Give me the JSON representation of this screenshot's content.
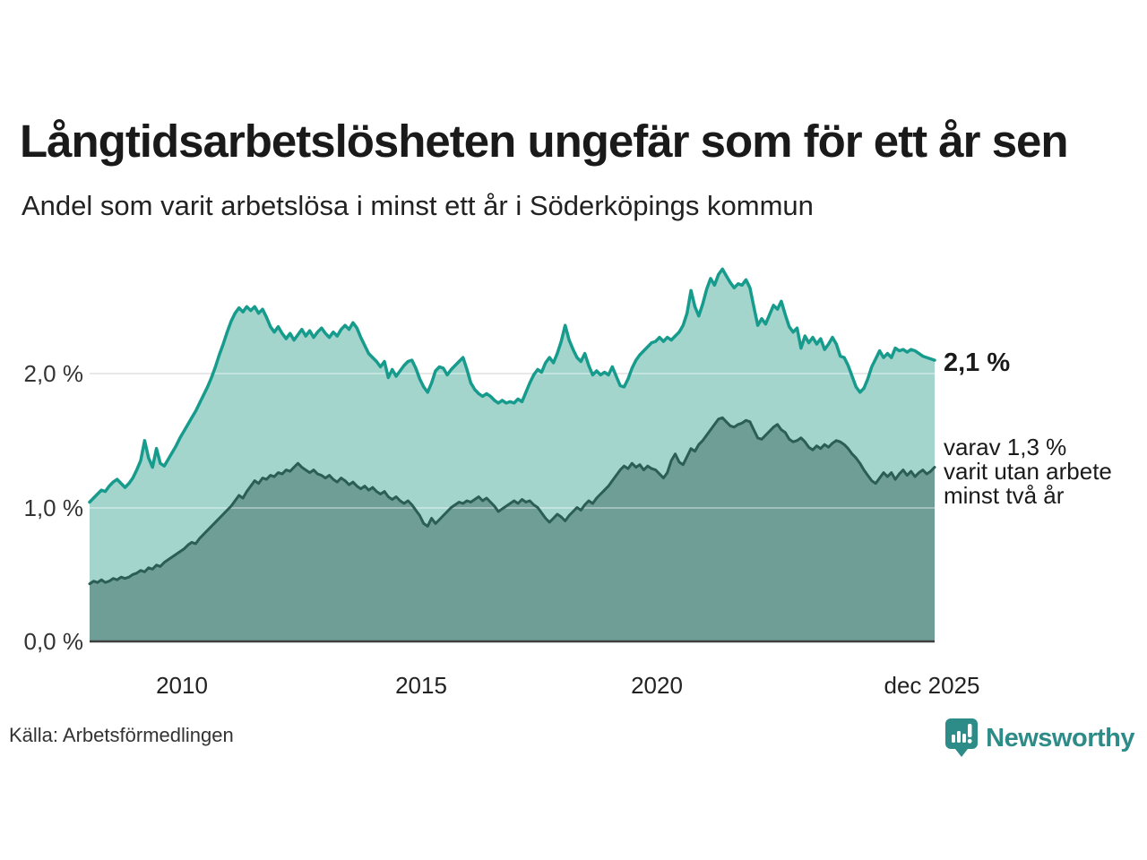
{
  "title": "Långtidsarbetslösheten ungefär som för ett år sen",
  "subtitle": "Andel som varit arbetslösa i minst ett år i Söderköpings kommun",
  "source": "Källa: Arbetsförmedlingen",
  "branding": {
    "name": "Newsworthy"
  },
  "annotations": {
    "latest_total": "2,1 %",
    "secondary_line1": "varav 1,3 %",
    "secondary_line2": "varit utan arbete",
    "secondary_line3": "minst två år"
  },
  "colors": {
    "accent_teal_line": "#169b8d",
    "light_fill": "#a3d5cd",
    "dark_fill": "#6f9e97",
    "dark_line": "#2b5e55",
    "grid": "#dcdcdc",
    "grid_overlay": "rgba(255,255,255,0.35)",
    "axis_baseline": "#3f3f3f",
    "logo_teal": "#2e8c88"
  },
  "chart_data": {
    "type": "area",
    "title": "Långtidsarbetslösheten ungefär som för ett år sen",
    "subtitle": "Andel som varit arbetslösa i minst ett år i Söderköpings kommun",
    "x_start": "2008-01",
    "x_end": "2025-12",
    "x_axis_ticks": [
      "2010",
      "2015",
      "2020",
      "dec 2025"
    ],
    "y_axis_ticks": [
      "2,0 %",
      "1,0 %",
      "0,0 %"
    ],
    "y_gridlines_pct": [
      2.0,
      1.0
    ],
    "ylim": [
      0,
      3
    ],
    "unit": "% av befolkningen",
    "legend_position": "annotated-right",
    "grid": true,
    "series": [
      {
        "name": "Andel som varit arbetslösa minst ett år",
        "latest_value": 2.1,
        "color": "#169b8d",
        "fill": "#a3d5cd",
        "values": [
          1.04,
          1.07,
          1.1,
          1.13,
          1.12,
          1.16,
          1.19,
          1.21,
          1.18,
          1.15,
          1.18,
          1.22,
          1.28,
          1.35,
          1.5,
          1.37,
          1.3,
          1.44,
          1.33,
          1.31,
          1.36,
          1.41,
          1.46,
          1.52,
          1.57,
          1.62,
          1.67,
          1.72,
          1.78,
          1.84,
          1.9,
          1.97,
          2.05,
          2.14,
          2.22,
          2.31,
          2.39,
          2.45,
          2.49,
          2.46,
          2.5,
          2.47,
          2.5,
          2.45,
          2.48,
          2.42,
          2.35,
          2.31,
          2.35,
          2.3,
          2.26,
          2.3,
          2.25,
          2.29,
          2.33,
          2.28,
          2.32,
          2.27,
          2.31,
          2.34,
          2.3,
          2.27,
          2.31,
          2.28,
          2.33,
          2.36,
          2.33,
          2.38,
          2.34,
          2.27,
          2.21,
          2.15,
          2.12,
          2.09,
          2.05,
          2.09,
          1.97,
          2.03,
          1.98,
          2.02,
          2.06,
          2.09,
          2.1,
          2.04,
          1.96,
          1.9,
          1.86,
          1.93,
          2.02,
          2.05,
          2.04,
          1.99,
          2.03,
          2.06,
          2.09,
          2.12,
          2.03,
          1.93,
          1.88,
          1.85,
          1.83,
          1.85,
          1.83,
          1.8,
          1.78,
          1.8,
          1.78,
          1.79,
          1.78,
          1.81,
          1.79,
          1.86,
          1.93,
          1.99,
          2.03,
          2.01,
          2.08,
          2.12,
          2.08,
          2.15,
          2.24,
          2.36,
          2.25,
          2.18,
          2.12,
          2.09,
          2.15,
          2.06,
          1.99,
          2.02,
          1.99,
          2.01,
          1.99,
          2.05,
          1.98,
          1.91,
          1.9,
          1.96,
          2.04,
          2.1,
          2.14,
          2.17,
          2.2,
          2.23,
          2.24,
          2.27,
          2.24,
          2.27,
          2.25,
          2.28,
          2.31,
          2.36,
          2.45,
          2.62,
          2.5,
          2.43,
          2.52,
          2.63,
          2.71,
          2.66,
          2.74,
          2.78,
          2.73,
          2.68,
          2.64,
          2.67,
          2.66,
          2.7,
          2.64,
          2.5,
          2.36,
          2.41,
          2.37,
          2.44,
          2.51,
          2.48,
          2.54,
          2.44,
          2.35,
          2.31,
          2.34,
          2.19,
          2.28,
          2.23,
          2.27,
          2.22,
          2.26,
          2.18,
          2.22,
          2.27,
          2.22,
          2.13,
          2.12,
          2.06,
          1.98,
          1.9,
          1.86,
          1.89,
          1.96,
          2.05,
          2.11,
          2.17,
          2.12,
          2.15,
          2.12,
          2.19,
          2.17,
          2.18,
          2.16,
          2.18,
          2.17,
          2.15,
          2.13,
          2.12,
          2.11,
          2.1
        ]
      },
      {
        "name": "varav utan arbete minst två år",
        "latest_value": 1.3,
        "color": "#2b5e55",
        "fill": "#6f9e97",
        "values": [
          0.43,
          0.45,
          0.44,
          0.46,
          0.44,
          0.45,
          0.47,
          0.46,
          0.48,
          0.47,
          0.48,
          0.5,
          0.51,
          0.53,
          0.52,
          0.55,
          0.54,
          0.57,
          0.56,
          0.59,
          0.61,
          0.63,
          0.65,
          0.67,
          0.69,
          0.72,
          0.74,
          0.73,
          0.77,
          0.8,
          0.83,
          0.86,
          0.89,
          0.92,
          0.95,
          0.98,
          1.01,
          1.05,
          1.09,
          1.07,
          1.12,
          1.16,
          1.2,
          1.18,
          1.22,
          1.21,
          1.24,
          1.23,
          1.26,
          1.25,
          1.28,
          1.27,
          1.3,
          1.33,
          1.3,
          1.28,
          1.26,
          1.28,
          1.25,
          1.24,
          1.22,
          1.24,
          1.21,
          1.19,
          1.22,
          1.2,
          1.17,
          1.19,
          1.16,
          1.14,
          1.16,
          1.13,
          1.15,
          1.12,
          1.1,
          1.12,
          1.08,
          1.06,
          1.08,
          1.05,
          1.03,
          1.05,
          1.02,
          0.98,
          0.94,
          0.88,
          0.86,
          0.92,
          0.88,
          0.91,
          0.94,
          0.97,
          1.0,
          1.02,
          1.04,
          1.03,
          1.05,
          1.04,
          1.06,
          1.08,
          1.05,
          1.07,
          1.04,
          1.01,
          0.97,
          0.99,
          1.01,
          1.03,
          1.05,
          1.03,
          1.06,
          1.04,
          1.05,
          1.02,
          1.0,
          0.96,
          0.92,
          0.89,
          0.92,
          0.95,
          0.93,
          0.9,
          0.94,
          0.97,
          1.0,
          0.98,
          1.02,
          1.05,
          1.03,
          1.07,
          1.1,
          1.13,
          1.16,
          1.2,
          1.24,
          1.28,
          1.31,
          1.29,
          1.33,
          1.3,
          1.32,
          1.28,
          1.31,
          1.29,
          1.28,
          1.25,
          1.22,
          1.26,
          1.35,
          1.4,
          1.34,
          1.32,
          1.38,
          1.44,
          1.42,
          1.47,
          1.5,
          1.54,
          1.58,
          1.62,
          1.66,
          1.67,
          1.64,
          1.61,
          1.6,
          1.62,
          1.63,
          1.65,
          1.64,
          1.58,
          1.52,
          1.51,
          1.54,
          1.57,
          1.6,
          1.62,
          1.58,
          1.56,
          1.51,
          1.49,
          1.5,
          1.52,
          1.49,
          1.45,
          1.43,
          1.46,
          1.44,
          1.47,
          1.45,
          1.48,
          1.5,
          1.49,
          1.47,
          1.44,
          1.4,
          1.37,
          1.33,
          1.28,
          1.24,
          1.2,
          1.18,
          1.22,
          1.26,
          1.23,
          1.26,
          1.21,
          1.25,
          1.28,
          1.24,
          1.27,
          1.23,
          1.26,
          1.28,
          1.25,
          1.27,
          1.3
        ]
      }
    ]
  }
}
